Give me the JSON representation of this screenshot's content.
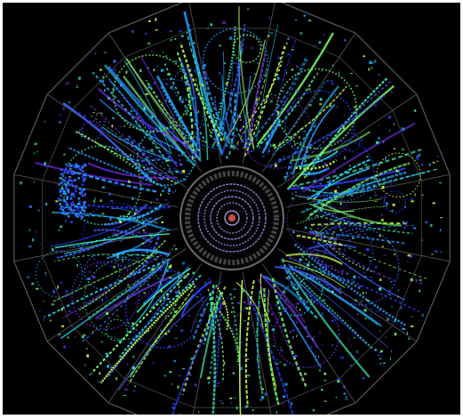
{
  "image": {
    "subject": "particle-collision-event-display",
    "background_color": "#000000",
    "frame_color": "#ffffff",
    "detector_outline_color": "#5a5a5a",
    "inner_ring_color": "#8a7ad0",
    "center_color": "#d04a4a",
    "track_colors": [
      "#2a3cff",
      "#3a64ff",
      "#1ea0ff",
      "#20d0e8",
      "#39e6b0",
      "#7cff6a",
      "#c8ff50",
      "#6a2ad8"
    ],
    "segments": 16
  }
}
